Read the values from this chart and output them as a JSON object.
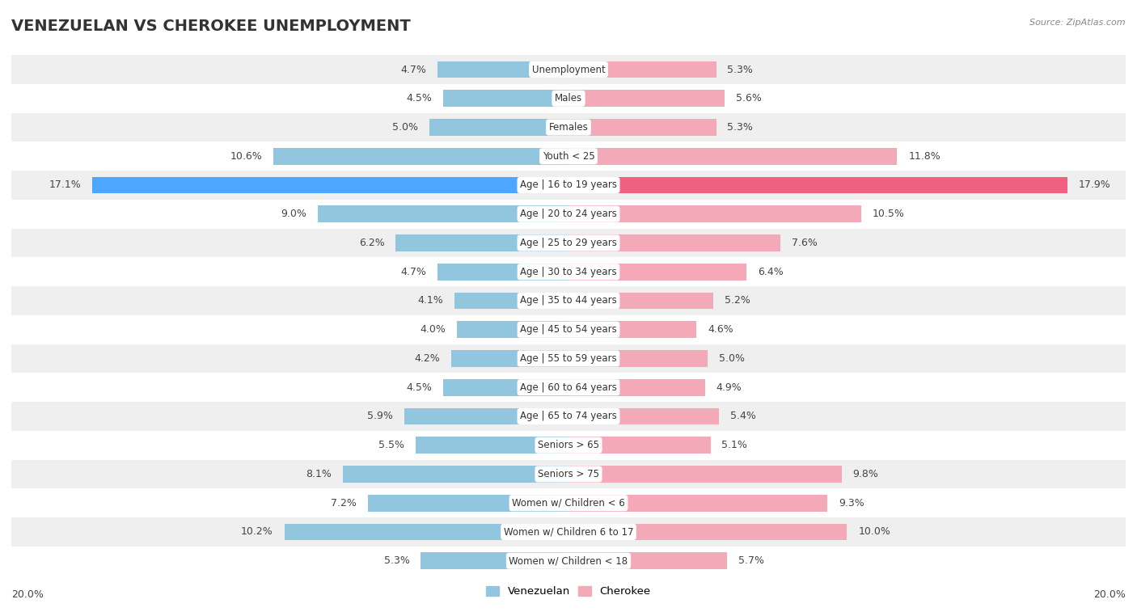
{
  "title": "VENEZUELAN VS CHEROKEE UNEMPLOYMENT",
  "source": "Source: ZipAtlas.com",
  "categories": [
    "Unemployment",
    "Males",
    "Females",
    "Youth < 25",
    "Age | 16 to 19 years",
    "Age | 20 to 24 years",
    "Age | 25 to 29 years",
    "Age | 30 to 34 years",
    "Age | 35 to 44 years",
    "Age | 45 to 54 years",
    "Age | 55 to 59 years",
    "Age | 60 to 64 years",
    "Age | 65 to 74 years",
    "Seniors > 65",
    "Seniors > 75",
    "Women w/ Children < 6",
    "Women w/ Children 6 to 17",
    "Women w/ Children < 18"
  ],
  "venezuelan": [
    4.7,
    4.5,
    5.0,
    10.6,
    17.1,
    9.0,
    6.2,
    4.7,
    4.1,
    4.0,
    4.2,
    4.5,
    5.9,
    5.5,
    8.1,
    7.2,
    10.2,
    5.3
  ],
  "cherokee": [
    5.3,
    5.6,
    5.3,
    11.8,
    17.9,
    10.5,
    7.6,
    6.4,
    5.2,
    4.6,
    5.0,
    4.9,
    5.4,
    5.1,
    9.8,
    9.3,
    10.0,
    5.7
  ],
  "venezuelan_color": "#92c5de",
  "cherokee_color": "#f4a9b8",
  "highlight_venezuelan_color": "#4da6ff",
  "highlight_cherokee_color": "#f06080",
  "highlight_row": 4,
  "max_val": 20.0,
  "bar_height": 0.58,
  "bg_color_odd": "#efefef",
  "bg_color_even": "#ffffff",
  "legend_venezuelan": "Venezuelan",
  "legend_cherokee": "Cherokee",
  "label_fontsize": 9,
  "title_fontsize": 14,
  "cat_fontsize": 8.5
}
